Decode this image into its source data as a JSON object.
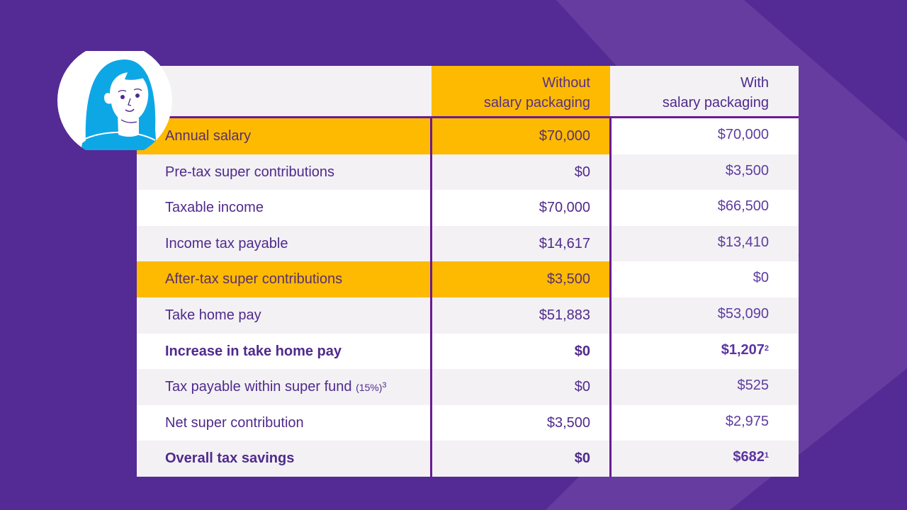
{
  "colors": {
    "background": "#542a94",
    "background_light": "#6a40a2",
    "accent_yellow": "#fdba00",
    "text_purple": "#4f2a8c",
    "divider_purple": "#6a1b94",
    "avatar_blue": "#0ea7e6"
  },
  "avatar": {
    "icon": "woman-avatar-icon"
  },
  "table": {
    "headers": {
      "without": [
        "Without",
        "salary packaging"
      ],
      "with": [
        "With",
        "salary packaging"
      ]
    },
    "rows": [
      {
        "label": "Annual salary",
        "without": "$70,000",
        "with": "$70,000",
        "highlight": true,
        "bold": false
      },
      {
        "label": "Pre-tax super contributions",
        "without": "$0",
        "with": "$3,500",
        "highlight": false,
        "bold": false
      },
      {
        "label": "Taxable income",
        "without": "$70,000",
        "with": "$66,500",
        "highlight": false,
        "bold": false
      },
      {
        "label": "Income tax payable",
        "without": "$14,617",
        "with": "$13,410",
        "highlight": false,
        "bold": false
      },
      {
        "label": "After-tax super contributions",
        "without": "$3,500",
        "with": "$0",
        "highlight": true,
        "bold": false
      },
      {
        "label": "Take home pay",
        "without": "$51,883",
        "with": "$53,090",
        "highlight": false,
        "bold": false
      },
      {
        "label": "Increase in take home pay",
        "without": "$0",
        "with": "$1,207",
        "with_footnote": "2",
        "highlight": false,
        "bold": true
      },
      {
        "label": "Tax payable within super fund",
        "label_suffix": "(15%)",
        "label_footnote": "3",
        "without": "$0",
        "with": "$525",
        "highlight": false,
        "bold": false
      },
      {
        "label": "Net super contribution",
        "without": "$3,500",
        "with": "$2,975",
        "highlight": false,
        "bold": false
      },
      {
        "label": "Overall tax savings",
        "without": "$0",
        "with": "$682",
        "with_footnote": "1",
        "highlight": false,
        "bold": true
      }
    ]
  }
}
